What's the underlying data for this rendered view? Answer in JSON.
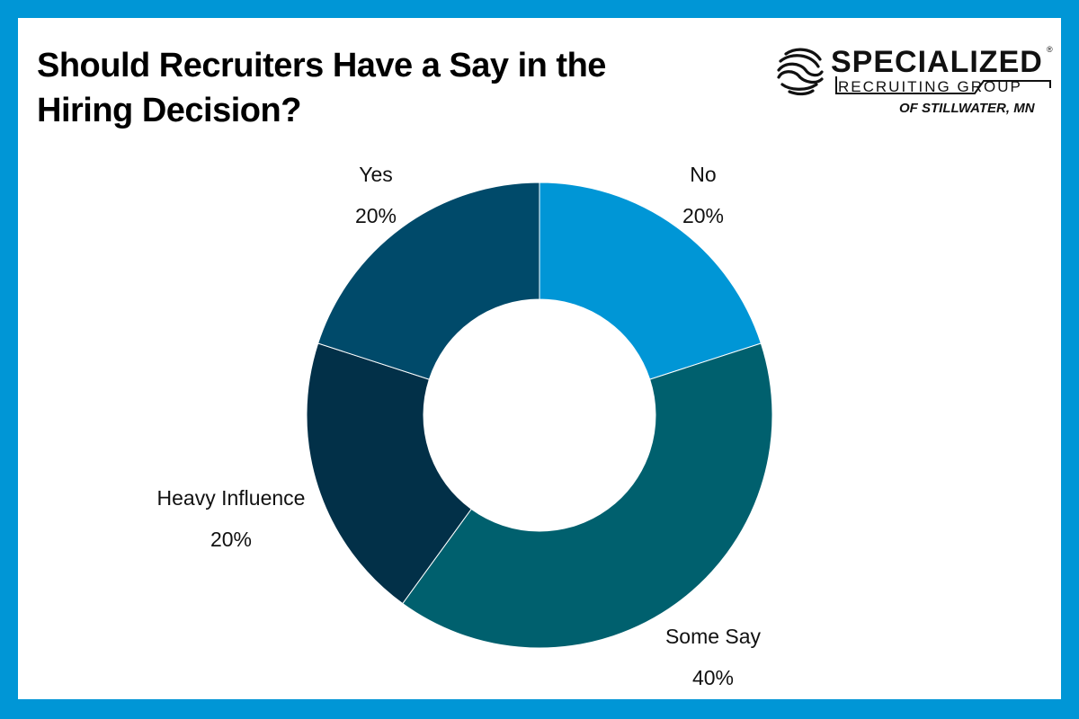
{
  "brand": {
    "name": "SPECIALIZED",
    "registered_mark": "®",
    "tagline": "RECRUITING GROUP",
    "location": "OF STILLWATER, MN"
  },
  "colors": {
    "frame": "#0096d6"
  },
  "chart_data": {
    "type": "pie",
    "donut": true,
    "title_lines": [
      "Should Recruiters Have a Say in the",
      "Hiring Decision?"
    ],
    "value_unit": "%",
    "slices": [
      {
        "label": "No",
        "value": 20,
        "display": "20%",
        "color": "#0096d6"
      },
      {
        "label": "Some Say",
        "value": 40,
        "display": "40%",
        "color": "#00606e"
      },
      {
        "label": "Heavy Influence",
        "value": 20,
        "display": "20%",
        "color": "#023048"
      },
      {
        "label": "Yes",
        "value": 20,
        "display": "20%",
        "color": "#004a6a"
      }
    ],
    "legend": "none"
  }
}
